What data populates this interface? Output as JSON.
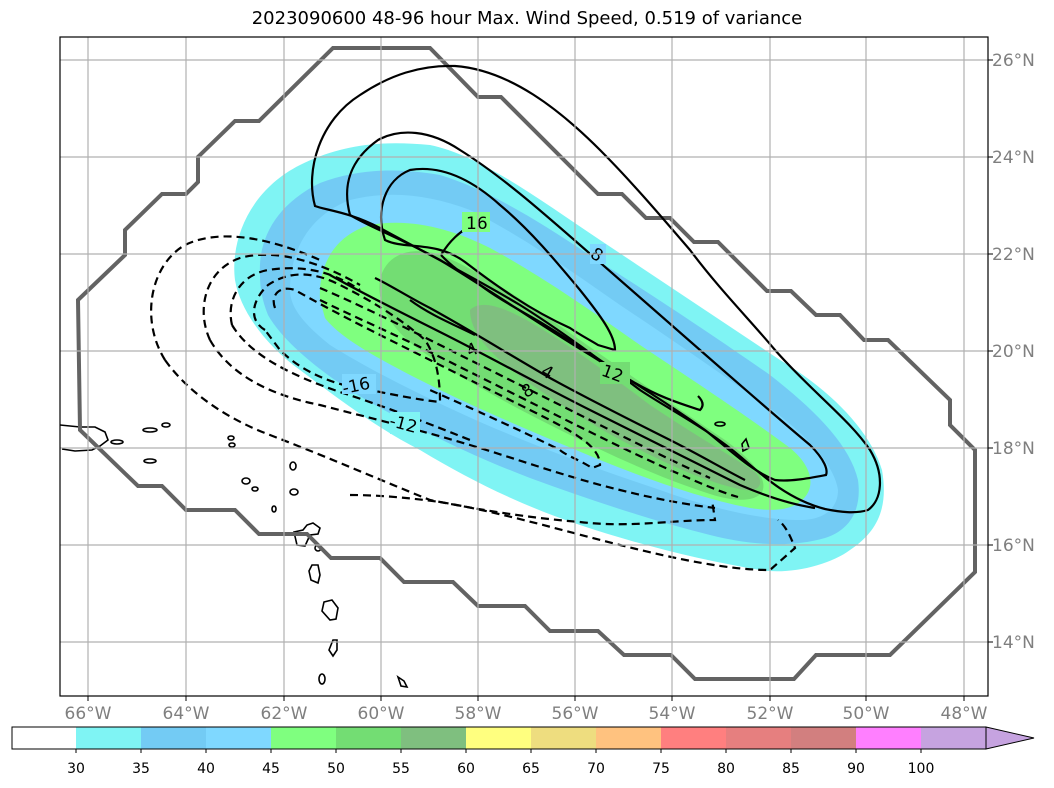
{
  "title": "2023090600 48-96 hour Max. Wind Speed, 0.519 of variance",
  "map": {
    "lon_labels": [
      "66°W",
      "64°W",
      "62°W",
      "60°W",
      "58°W",
      "56°W",
      "54°W",
      "52°W",
      "50°W",
      "48°W"
    ],
    "lat_labels": [
      "26°N",
      "24°N",
      "22°N",
      "20°N",
      "18°N",
      "16°N",
      "14°N"
    ],
    "contour_labels": [
      "16",
      "8",
      "4",
      "12",
      "8",
      "4",
      "-16",
      "-12"
    ],
    "cone_color": "#636363",
    "fill_colors": {
      "30": "#7ff4f4",
      "35": "#73cbf4",
      "40": "#7fd8ff",
      "45": "#7fff7f",
      "50": "#73dd73",
      "55": "#7fbf7f"
    }
  },
  "colorbar": {
    "ticks": [
      "30",
      "35",
      "40",
      "45",
      "50",
      "55",
      "60",
      "65",
      "70",
      "75",
      "80",
      "85",
      "90",
      "100"
    ],
    "colors": [
      "#7ff4f4",
      "#73cbf4",
      "#7fd8ff",
      "#7fff7f",
      "#73dd73",
      "#7fbf7f",
      "#ffff7f",
      "#eedd7f",
      "#ffc27f",
      "#ff7f7f",
      "#e67f7f",
      "#d27f7f",
      "#ff7fff",
      "#c6a3e0",
      "#c6a3e0"
    ]
  }
}
